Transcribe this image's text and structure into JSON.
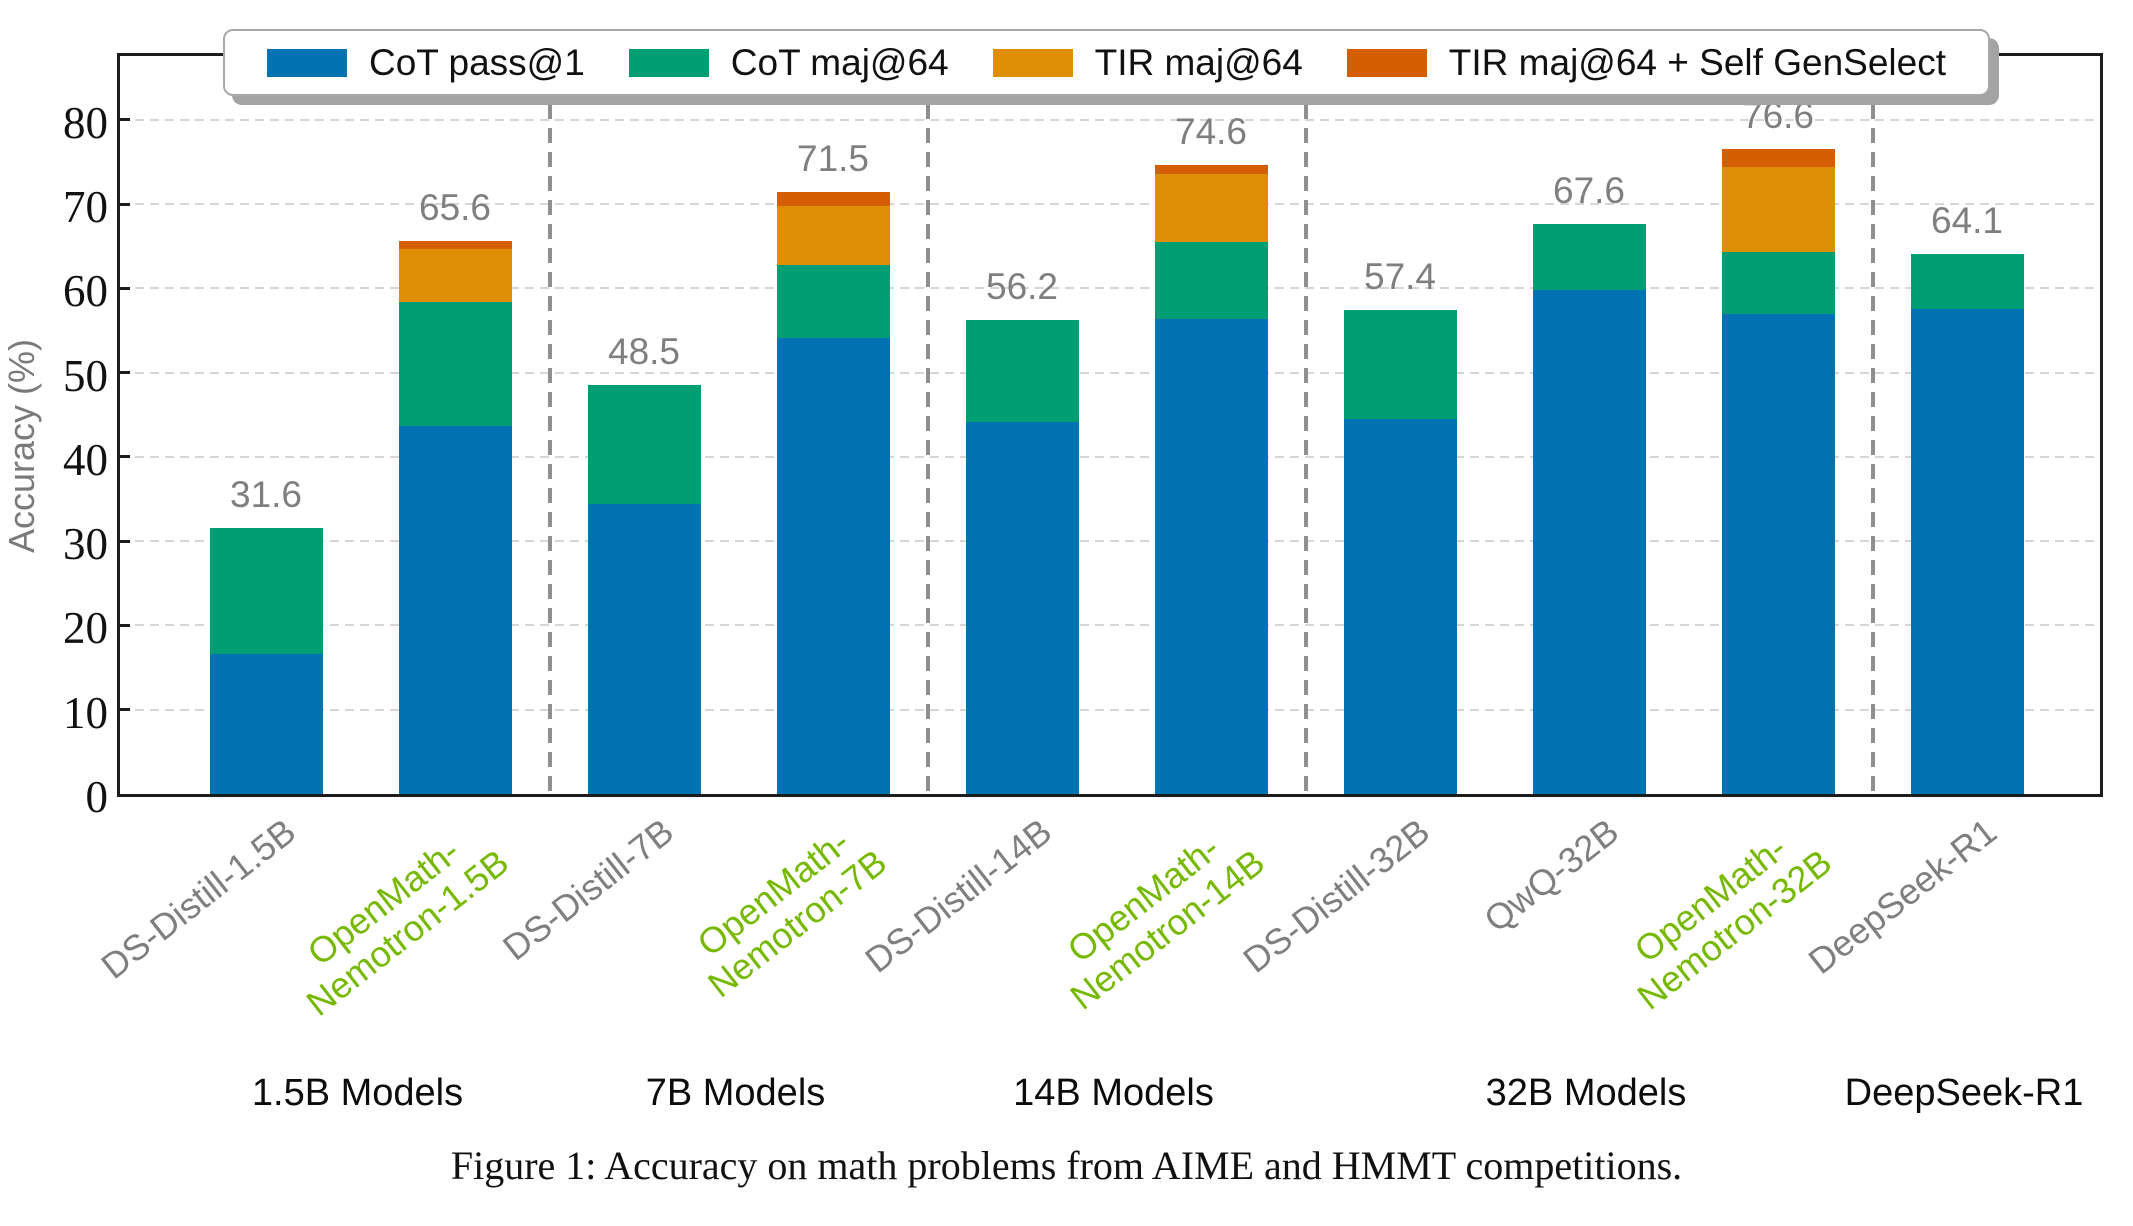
{
  "figure": {
    "caption": "Figure 1: Accuracy on math problems from AIME and HMMT competitions.",
    "ylabel": "Accuracy (%)"
  },
  "colors": {
    "cot_pass1": "#0173b2",
    "cot_maj64": "#029e73",
    "tir_maj64": "#de8f05",
    "tir_genselect": "#d55e00",
    "highlight_label": "#76b900",
    "default_label": "#7f7f7f",
    "value_label": "#7f7f7f",
    "grid": "#d6d6d6",
    "separator": "#8f8f8f"
  },
  "legend": {
    "items": [
      {
        "label": "CoT pass@1",
        "color": "#0173b2"
      },
      {
        "label": "CoT maj@64",
        "color": "#029e73"
      },
      {
        "label": "TIR maj@64",
        "color": "#de8f05"
      },
      {
        "label": "TIR maj@64 + Self GenSelect",
        "color": "#d55e00"
      }
    ]
  },
  "chart_data": {
    "type": "bar",
    "stacked": true,
    "title": "",
    "xlabel": "",
    "ylabel": "Accuracy (%)",
    "ylim": [
      0,
      88
    ],
    "yticks": [
      0,
      10,
      20,
      30,
      40,
      50,
      60,
      70,
      80
    ],
    "grid": "horizontal-dashed",
    "legend_position": "top",
    "categories": [
      "DS-Distill-1.5B",
      "OpenMath-\nNemotron-1.5B",
      "DS-Distill-7B",
      "OpenMath-\nNemotron-7B",
      "DS-Distill-14B",
      "OpenMath-\nNemotron-14B",
      "DS-Distill-32B",
      "QwQ-32B",
      "OpenMath-\nNemotron-32B",
      "DeepSeek-R1"
    ],
    "category_highlighted": [
      false,
      true,
      false,
      true,
      false,
      true,
      false,
      false,
      true,
      false
    ],
    "series": [
      {
        "name": "CoT pass@1",
        "color": "#0173b2",
        "values": [
          16.6,
          43.7,
          34.4,
          54.1,
          44.2,
          56.4,
          44.5,
          59.8,
          57.0,
          57.6
        ]
      },
      {
        "name": "CoT maj@64",
        "color": "#029e73",
        "values": [
          15.0,
          14.7,
          14.1,
          8.7,
          12.0,
          9.1,
          12.9,
          7.8,
          7.3,
          6.5
        ]
      },
      {
        "name": "TIR maj@64",
        "color": "#de8f05",
        "values": [
          0,
          6.3,
          0,
          7.0,
          0,
          8.1,
          0,
          0,
          10.1,
          0
        ]
      },
      {
        "name": "TIR maj@64 + Self GenSelect",
        "color": "#d55e00",
        "values": [
          0,
          0.9,
          0,
          1.7,
          0,
          1.0,
          0,
          0,
          2.2,
          0
        ]
      }
    ],
    "totals": [
      31.6,
      65.6,
      48.5,
      71.5,
      56.2,
      74.6,
      57.4,
      67.6,
      76.6,
      64.1
    ],
    "groups": [
      {
        "label": "1.5B Models",
        "category_indices": [
          0,
          1
        ]
      },
      {
        "label": "7B Models",
        "category_indices": [
          2,
          3
        ]
      },
      {
        "label": "14B Models",
        "category_indices": [
          4,
          5
        ]
      },
      {
        "label": "32B Models",
        "category_indices": [
          6,
          7,
          8
        ]
      },
      {
        "label": "DeepSeek-R1",
        "category_indices": [
          9
        ]
      }
    ],
    "separators_between_groups": true
  }
}
